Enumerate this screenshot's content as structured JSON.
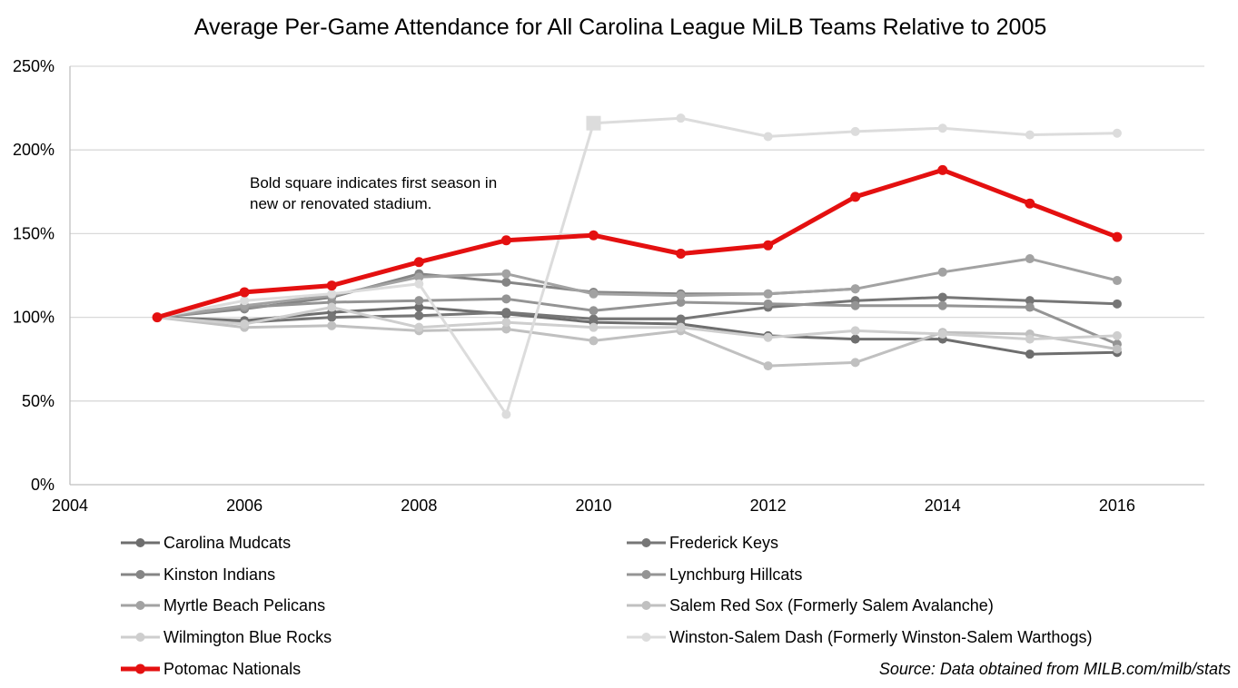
{
  "chart_data": {
    "type": "line",
    "title": "Average Per-Game Attendance for All Carolina League MiLB Teams Relative to 2005",
    "xlabel": "",
    "ylabel": "",
    "xlim": [
      2004,
      2017
    ],
    "ylim": [
      0,
      250
    ],
    "x_ticks": [
      "2004",
      "2006",
      "2008",
      "2010",
      "2012",
      "2014",
      "2016"
    ],
    "y_ticks": [
      "0%",
      "50%",
      "100%",
      "150%",
      "200%",
      "250%"
    ],
    "grid": "horizontal",
    "legend_position": "bottom",
    "x": [
      2005,
      2006,
      2007,
      2008,
      2009,
      2010,
      2011,
      2012,
      2013,
      2014,
      2015,
      2016
    ],
    "series": [
      {
        "name": "Carolina Mudcats",
        "color": "#6e6e6e",
        "width": 2,
        "values": [
          100,
          98,
          103,
          106,
          102,
          97,
          96,
          89,
          87,
          87,
          78,
          79
        ]
      },
      {
        "name": "Frederick Keys",
        "color": "#767676",
        "width": 2,
        "values": [
          100,
          97,
          100,
          101,
          103,
          99,
          99,
          106,
          110,
          112,
          110,
          108
        ]
      },
      {
        "name": "Kinston Indians",
        "color": "#858585",
        "width": 2,
        "values": [
          100,
          105,
          112,
          126,
          121,
          115,
          114,
          114,
          117,
          null,
          null,
          null
        ]
      },
      {
        "name": "Lynchburg Hillcats",
        "color": "#949494",
        "width": 2,
        "values": [
          100,
          106,
          109,
          110,
          111,
          104,
          109,
          108,
          107,
          107,
          106,
          84
        ]
      },
      {
        "name": "Myrtle Beach Pelicans",
        "color": "#a2a2a2",
        "width": 2,
        "values": [
          100,
          107,
          113,
          124,
          126,
          114,
          113,
          114,
          117,
          127,
          135,
          122
        ]
      },
      {
        "name": "Salem Red Sox (Formerly Salem Avalanche)",
        "color": "#c0c0c0",
        "width": 2,
        "values": [
          100,
          94,
          95,
          92,
          93,
          86,
          92,
          71,
          73,
          91,
          90,
          81
        ]
      },
      {
        "name": "Wilmington Blue Rocks",
        "color": "#cecece",
        "width": 2,
        "values": [
          100,
          96,
          106,
          94,
          97,
          94,
          94,
          88,
          92,
          90,
          87,
          89
        ]
      },
      {
        "name": "Winston-Salem Dash (Formerly Winston-Salem Warthogs)",
        "color": "#dcdcdc",
        "width": 2,
        "values": [
          100,
          110,
          114,
          120,
          42,
          216,
          219,
          208,
          211,
          213,
          209,
          210
        ],
        "square_index": 5
      },
      {
        "name": "Potomac Nationals",
        "color": "#e41010",
        "width": 4,
        "values": [
          100,
          115,
          119,
          133,
          146,
          149,
          138,
          143,
          172,
          188,
          168,
          148
        ]
      }
    ],
    "annotation": [
      "Bold square indicates first season in",
      "new or renovated stadium."
    ],
    "source": "Source: Data obtained from MILB.com/milb/stats"
  }
}
